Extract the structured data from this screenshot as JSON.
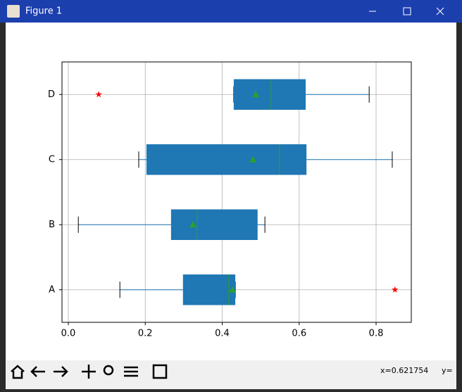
{
  "window": {
    "title": "Figure 1",
    "status_x": "x=0.621754",
    "status_y": "y="
  },
  "chart_data": {
    "type": "box",
    "orientation": "horizontal",
    "categories": [
      "A",
      "B",
      "C",
      "D"
    ],
    "boxes": [
      {
        "whislo": 0.134,
        "q1": 0.298,
        "med": 0.417,
        "mean": 0.427,
        "q3": 0.434,
        "whishi": 0.434,
        "fliers": [
          0.849
        ]
      },
      {
        "whislo": 0.026,
        "q1": 0.267,
        "med": 0.335,
        "mean": 0.324,
        "q3": 0.492,
        "whishi": 0.511,
        "fliers": []
      },
      {
        "whislo": 0.183,
        "q1": 0.203,
        "med": 0.549,
        "mean": 0.48,
        "q3": 0.619,
        "whishi": 0.842,
        "fliers": []
      },
      {
        "whislo": 0.43,
        "q1": 0.43,
        "med": 0.527,
        "mean": 0.487,
        "q3": 0.617,
        "whishi": 0.782,
        "fliers": [
          0.079
        ]
      }
    ],
    "box_color": "#1f77b4",
    "median_color": "#2ca02c",
    "mean_color": "#2ca02c",
    "flier_color": "#ff0000",
    "xlim": [
      -0.0165,
      0.8915
    ],
    "xticks": [
      {
        "value": 0,
        "label": "0.0"
      },
      {
        "value": 0.2,
        "label": "0.2"
      },
      {
        "value": 0.4,
        "label": "0.4"
      },
      {
        "value": 0.6,
        "label": "0.6"
      },
      {
        "value": 0.8,
        "label": "0.8"
      }
    ],
    "grid": true
  }
}
